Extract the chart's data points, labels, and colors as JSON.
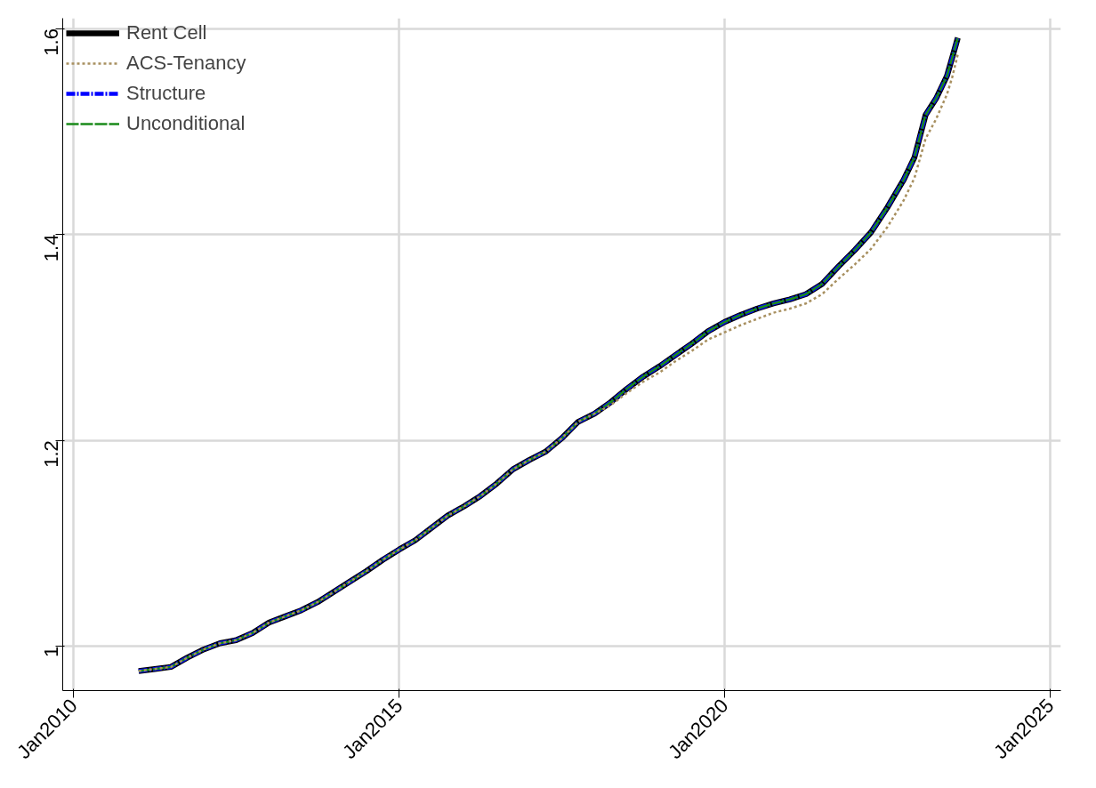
{
  "chart_data": {
    "type": "line",
    "x": [
      "2011-01",
      "2011-04",
      "2011-07",
      "2011-10",
      "2012-01",
      "2012-04",
      "2012-07",
      "2012-10",
      "2013-01",
      "2013-04",
      "2013-07",
      "2013-10",
      "2014-01",
      "2014-04",
      "2014-07",
      "2014-10",
      "2015-01",
      "2015-04",
      "2015-07",
      "2015-10",
      "2016-01",
      "2016-04",
      "2016-07",
      "2016-10",
      "2017-01",
      "2017-04",
      "2017-07",
      "2017-10",
      "2018-01",
      "2018-04",
      "2018-07",
      "2018-10",
      "2019-01",
      "2019-04",
      "2019-07",
      "2019-10",
      "2020-01",
      "2020-04",
      "2020-07",
      "2020-10",
      "2021-01",
      "2021-04",
      "2021-07",
      "2021-10",
      "2022-01",
      "2022-04",
      "2022-07",
      "2022-10",
      "2022-12",
      "2023-02",
      "2023-04",
      "2023-06",
      "2023-07",
      "2023-08"
    ],
    "series": [
      {
        "name": "Rent Cell",
        "color": "#000000",
        "line_style": "solid",
        "values": [
          0.976,
          0.978,
          0.98,
          0.989,
          0.997,
          1.003,
          1.006,
          1.013,
          1.023,
          1.029,
          1.035,
          1.043,
          1.053,
          1.063,
          1.073,
          1.084,
          1.094,
          1.103,
          1.115,
          1.127,
          1.136,
          1.146,
          1.158,
          1.172,
          1.181,
          1.189,
          1.202,
          1.218,
          1.226,
          1.237,
          1.25,
          1.262,
          1.272,
          1.283,
          1.294,
          1.306,
          1.315,
          1.322,
          1.328,
          1.333,
          1.337,
          1.342,
          1.352,
          1.369,
          1.385,
          1.402,
          1.426,
          1.453,
          1.475,
          1.516,
          1.532,
          1.554,
          1.572,
          1.591
        ]
      },
      {
        "name": "ACS-Tenancy",
        "color": "#a89060",
        "line_style": "dotted",
        "values": [
          0.976,
          0.978,
          0.98,
          0.989,
          0.997,
          1.003,
          1.006,
          1.013,
          1.023,
          1.029,
          1.035,
          1.043,
          1.053,
          1.063,
          1.073,
          1.084,
          1.094,
          1.103,
          1.115,
          1.127,
          1.136,
          1.146,
          1.158,
          1.172,
          1.181,
          1.189,
          1.202,
          1.218,
          1.226,
          1.234,
          1.246,
          1.257,
          1.266,
          1.277,
          1.287,
          1.298,
          1.305,
          1.312,
          1.318,
          1.324,
          1.328,
          1.333,
          1.342,
          1.357,
          1.371,
          1.386,
          1.407,
          1.433,
          1.455,
          1.493,
          1.512,
          1.536,
          1.553,
          1.575
        ]
      },
      {
        "name": "Structure",
        "color": "#0000ff",
        "line_style": "dashdot",
        "values": [
          0.976,
          0.978,
          0.98,
          0.989,
          0.997,
          1.003,
          1.006,
          1.013,
          1.023,
          1.029,
          1.035,
          1.043,
          1.053,
          1.063,
          1.073,
          1.084,
          1.094,
          1.103,
          1.115,
          1.127,
          1.136,
          1.146,
          1.158,
          1.172,
          1.181,
          1.189,
          1.202,
          1.218,
          1.226,
          1.237,
          1.25,
          1.262,
          1.272,
          1.283,
          1.294,
          1.306,
          1.315,
          1.322,
          1.328,
          1.333,
          1.337,
          1.342,
          1.352,
          1.369,
          1.385,
          1.402,
          1.426,
          1.453,
          1.475,
          1.516,
          1.532,
          1.554,
          1.572,
          1.591
        ]
      },
      {
        "name": "Unconditional",
        "color": "#1a8a1a",
        "line_style": "dashed",
        "values": [
          0.976,
          0.978,
          0.98,
          0.989,
          0.997,
          1.003,
          1.006,
          1.013,
          1.023,
          1.029,
          1.035,
          1.043,
          1.053,
          1.063,
          1.073,
          1.084,
          1.094,
          1.103,
          1.115,
          1.127,
          1.136,
          1.146,
          1.158,
          1.172,
          1.181,
          1.189,
          1.202,
          1.218,
          1.226,
          1.237,
          1.25,
          1.262,
          1.272,
          1.283,
          1.294,
          1.306,
          1.315,
          1.322,
          1.328,
          1.333,
          1.337,
          1.342,
          1.352,
          1.369,
          1.385,
          1.402,
          1.426,
          1.453,
          1.475,
          1.516,
          1.532,
          1.554,
          1.572,
          1.591
        ]
      }
    ],
    "xlim": [
      "2009-11",
      "2025-03"
    ],
    "xticks": [
      {
        "value": "2010-01",
        "label": "Jan2010"
      },
      {
        "value": "2015-01",
        "label": "Jan2015"
      },
      {
        "value": "2020-01",
        "label": "Jan2020"
      },
      {
        "value": "2025-01",
        "label": "Jan2025"
      }
    ],
    "ylim": [
      0.957,
      1.61
    ],
    "yticks": [
      1,
      1.2,
      1.4,
      1.6
    ],
    "grid": true,
    "legend": "top left"
  }
}
